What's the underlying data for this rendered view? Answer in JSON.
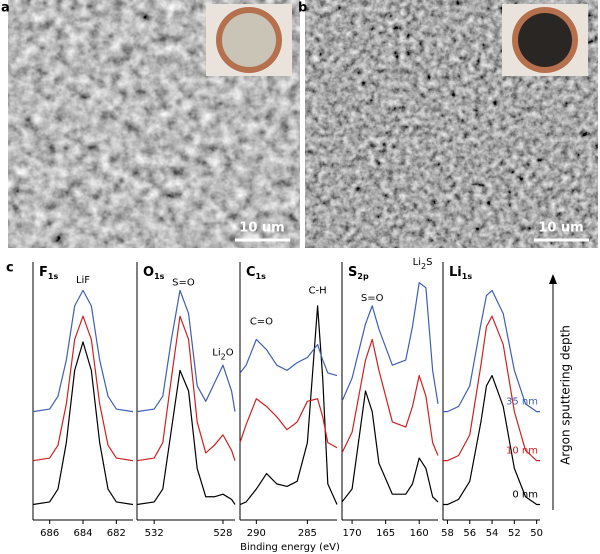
{
  "images": [
    {
      "letter": "a",
      "scale_bar": "10 um"
    },
    {
      "letter": "b",
      "scale_bar": "10 um"
    }
  ],
  "panel_letter": "c",
  "xlabel": "Binding energy (eV)",
  "depth_label": "Argon sputtering depth",
  "chart_data": [
    {
      "type": "line",
      "title": [
        "F",
        "1s"
      ],
      "xlim": [
        687,
        681
      ],
      "xticks": [
        686,
        684,
        682
      ],
      "ylim": [
        0,
        100
      ],
      "x": [
        687,
        686,
        685.5,
        685,
        684.5,
        684,
        683.5,
        683,
        682.5,
        682,
        681
      ],
      "series": [
        {
          "color": "#000000",
          "values": [
            6,
            7,
            12,
            30,
            58,
            69,
            58,
            30,
            12,
            7,
            6
          ]
        },
        {
          "color": "#cc2222",
          "values": [
            23,
            24,
            29,
            45,
            70,
            79,
            70,
            45,
            29,
            24,
            23
          ]
        },
        {
          "color": "#3f5fb5",
          "values": [
            42,
            43,
            48,
            62,
            83,
            89,
            83,
            62,
            48,
            43,
            42
          ]
        }
      ],
      "annotations": [
        {
          "text": [
            "LiF"
          ],
          "x": 684,
          "y": 93
        }
      ]
    },
    {
      "type": "line",
      "title": [
        "O",
        "1s"
      ],
      "xlim": [
        533,
        527.3
      ],
      "xticks": [
        532,
        528
      ],
      "ylim": [
        0,
        100
      ],
      "x": [
        533,
        532,
        531.5,
        531,
        530.5,
        530,
        529.5,
        529,
        528.5,
        528,
        527.5,
        527.3
      ],
      "series": [
        {
          "color": "#000000",
          "values": [
            6,
            7,
            12,
            35,
            58,
            50,
            20,
            9,
            9,
            10,
            8,
            6
          ]
        },
        {
          "color": "#cc2222",
          "values": [
            23,
            24,
            30,
            55,
            79,
            70,
            38,
            26,
            29,
            33,
            27,
            23
          ]
        },
        {
          "color": "#3f5fb5",
          "values": [
            42,
            43,
            48,
            70,
            89,
            80,
            52,
            46,
            53,
            60,
            50,
            42
          ]
        }
      ],
      "annotations": [
        {
          "text": [
            "S=O"
          ],
          "x": 530.3,
          "y": 92
        },
        {
          "text": [
            "Li",
            "2",
            "O"
          ],
          "x": 528,
          "y": 65
        }
      ]
    },
    {
      "type": "line",
      "title": [
        "C",
        "1s"
      ],
      "xlim": [
        291.6,
        282.1
      ],
      "xticks": [
        290,
        285
      ],
      "ylim": [
        0,
        100
      ],
      "x": [
        291.6,
        291,
        290,
        289,
        288,
        287,
        286,
        285,
        284,
        283.5,
        283,
        282.1
      ],
      "series": [
        {
          "color": "#000000",
          "values": [
            6,
            7,
            12,
            18,
            14,
            13,
            15,
            30,
            83,
            55,
            14,
            6
          ]
        },
        {
          "color": "#cc2222",
          "values": [
            30,
            37,
            47,
            44,
            40,
            35,
            38,
            46,
            47,
            40,
            30,
            28
          ]
        },
        {
          "color": "#3f5fb5",
          "values": [
            57,
            60,
            70,
            66,
            60,
            58,
            61,
            63,
            68,
            62,
            57,
            56
          ]
        }
      ],
      "annotations": [
        {
          "text": [
            "C=O"
          ],
          "x": 289.5,
          "y": 77
        },
        {
          "text": [
            "C-H"
          ],
          "x": 284,
          "y": 89
        }
      ]
    },
    {
      "type": "line",
      "title": [
        "S",
        "2p"
      ],
      "xlim": [
        171.5,
        157.2
      ],
      "xticks": [
        170,
        165,
        160
      ],
      "ylim": [
        0,
        100
      ],
      "x": [
        171.5,
        170,
        168,
        167,
        166,
        164,
        162,
        161,
        160,
        159,
        158,
        157.2
      ],
      "series": [
        {
          "color": "#000000",
          "values": [
            7,
            12,
            50,
            42,
            22,
            10,
            10,
            14,
            24,
            20,
            9,
            7
          ]
        },
        {
          "color": "#cc2222",
          "values": [
            26,
            34,
            62,
            70,
            58,
            38,
            36,
            44,
            56,
            48,
            30,
            25
          ]
        },
        {
          "color": "#3f5fb5",
          "values": [
            46,
            55,
            76,
            83,
            74,
            60,
            62,
            75,
            92,
            90,
            58,
            45
          ]
        }
      ],
      "annotations": [
        {
          "text": [
            "S=O"
          ],
          "x": 167,
          "y": 86
        },
        {
          "text": [
            "Li",
            "2",
            "S"
          ],
          "x": 159.5,
          "y": 100
        }
      ]
    },
    {
      "type": "line",
      "title": [
        "Li",
        "1s"
      ],
      "xlim": [
        58.4,
        49.7
      ],
      "xticks": [
        58,
        56,
        54,
        52,
        50
      ],
      "ylim": [
        0,
        100
      ],
      "x": [
        58.4,
        58,
        57,
        56,
        55,
        54.5,
        54,
        53,
        52,
        51,
        50,
        49.7
      ],
      "series": [
        {
          "name": "0 nm",
          "color": "#000000",
          "values": [
            6,
            6,
            8,
            15,
            38,
            52,
            56,
            44,
            20,
            9,
            6,
            6
          ]
        },
        {
          "name": "10 nm",
          "color": "#cc2222",
          "values": [
            23,
            23,
            25,
            33,
            60,
            75,
            79,
            68,
            42,
            27,
            23,
            23
          ]
        },
        {
          "name": "35 nm",
          "color": "#3f5fb5",
          "values": [
            42,
            42,
            44,
            52,
            76,
            87,
            89,
            80,
            58,
            45,
            42,
            42
          ]
        }
      ],
      "annotations": []
    }
  ]
}
